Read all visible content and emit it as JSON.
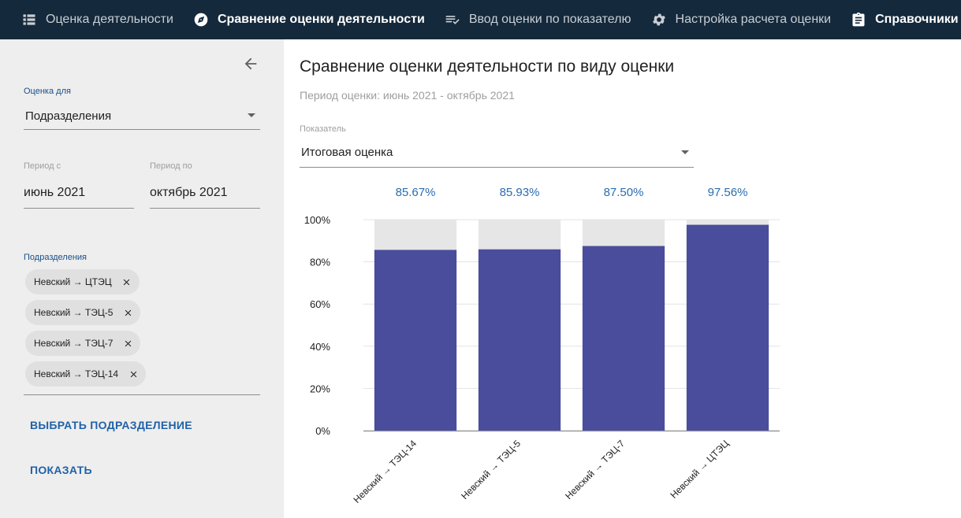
{
  "nav": {
    "items": [
      {
        "label": "Оценка деятельности",
        "icon": "list-icon",
        "active": false
      },
      {
        "label": "Сравнение оценки деятельности",
        "icon": "compass-icon",
        "active": true
      },
      {
        "label": "Ввод оценки по показателю",
        "icon": "playlist-check-icon",
        "active": false
      },
      {
        "label": "Настройка расчета оценки",
        "icon": "gear-icon",
        "active": false
      },
      {
        "label": "Справочники",
        "icon": "clipboard-icon",
        "active": false
      }
    ]
  },
  "sidebar": {
    "evaluation_for": {
      "label": "Оценка для",
      "value": "Подразделения"
    },
    "period_from": {
      "label": "Период с",
      "value": "июнь 2021"
    },
    "period_to": {
      "label": "Период по",
      "value": "октябрь 2021"
    },
    "departments": {
      "label": "Подразделения",
      "chips": [
        "Невский → ЦТЭЦ",
        "Невский → ТЭЦ-5",
        "Невский → ТЭЦ-7",
        "Невский → ТЭЦ-14"
      ]
    },
    "select_department_button": "ВЫБРАТЬ ПОДРАЗДЕЛЕНИЕ",
    "show_button": "ПОКАЗАТЬ"
  },
  "main": {
    "title": "Сравнение оценки деятельности по виду оценки",
    "subtitle": "Период оценки: июнь 2021 - октябрь 2021",
    "indicator": {
      "label": "Показатель",
      "value": "Итоговая оценка"
    }
  },
  "colors": {
    "nav_bg": "#14293b",
    "bar": "#4a4c9c",
    "bar_remainder": "#e6e6e6",
    "value_label": "#2b6cb0",
    "sidebar_bg": "#eeeeee",
    "accent": "#1f62a8"
  },
  "chart_data": {
    "type": "bar",
    "stacked": true,
    "categories": [
      "Невский → ТЭЦ-14",
      "Невский → ТЭЦ-5",
      "Невский → ТЭЦ-7",
      "Невский → ЦТЭЦ"
    ],
    "values": [
      85.67,
      85.93,
      87.5,
      97.56
    ],
    "value_labels": [
      "85.67%",
      "85.93%",
      "87.50%",
      "97.56%"
    ],
    "ylim": [
      0,
      100
    ],
    "yticks": [
      0,
      20,
      40,
      60,
      80,
      100
    ],
    "ytick_labels": [
      "0%",
      "20%",
      "40%",
      "60%",
      "80%",
      "100%"
    ],
    "grid": true,
    "xlabel": "",
    "ylabel": ""
  }
}
